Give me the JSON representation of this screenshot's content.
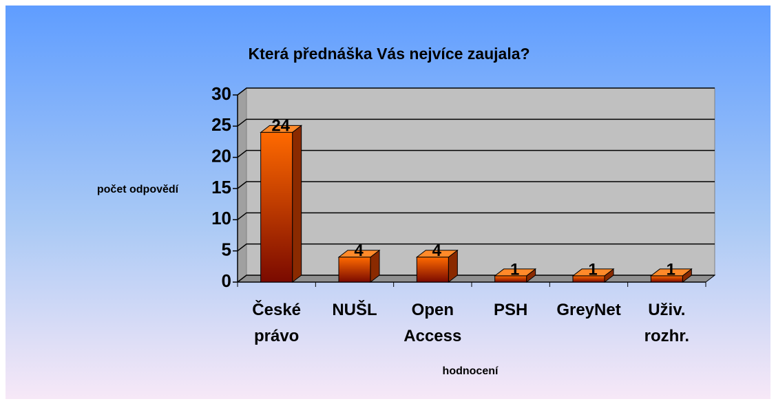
{
  "chart_data": {
    "type": "bar",
    "title": "Která přednáška Vás nejvíce zaujala?",
    "categories": [
      "České právo",
      "NUŠL",
      "Open Access",
      "PSH",
      "GreyNet",
      "Uživ. rozhr."
    ],
    "values": [
      24,
      4,
      4,
      1,
      1,
      1
    ],
    "ylabel": "počet odpovědí",
    "xlabel": "hodnocení",
    "ylim": [
      0,
      30
    ],
    "yticks": [
      0,
      5,
      10,
      15,
      20,
      25,
      30
    ],
    "grid": true,
    "color": "#ff6600"
  }
}
